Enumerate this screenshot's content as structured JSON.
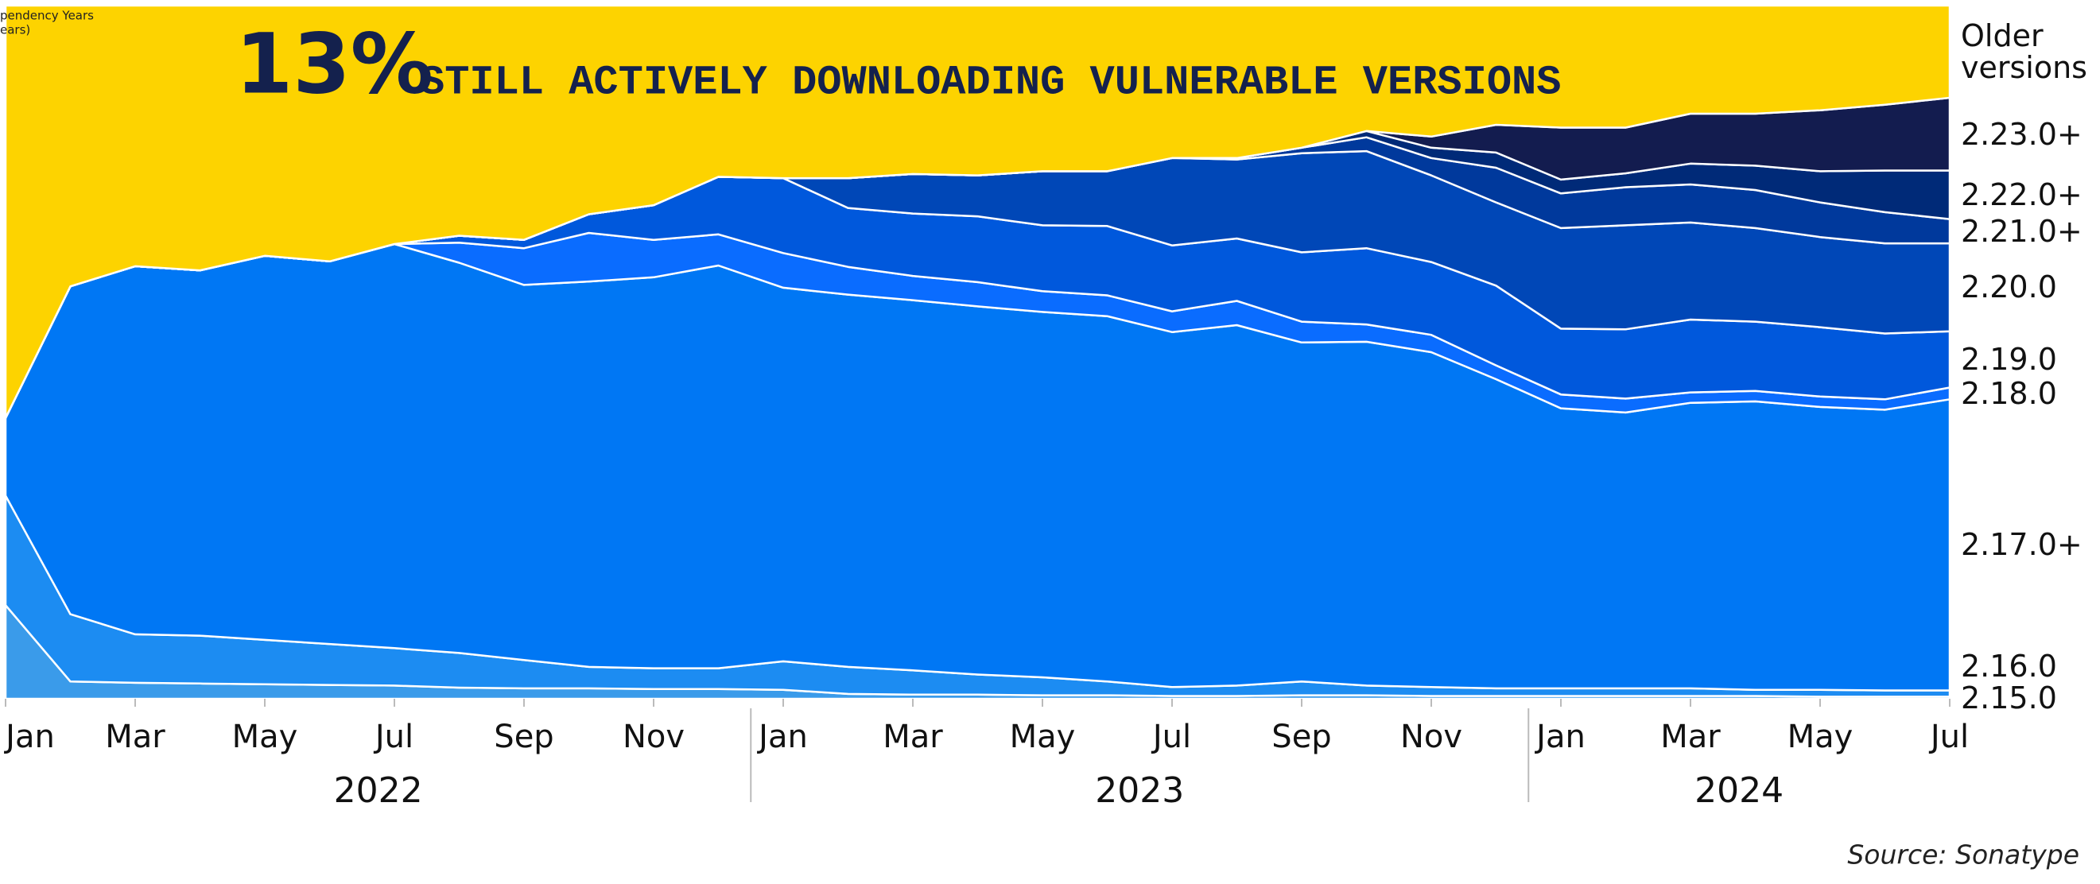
{
  "chart_data": {
    "type": "stacked_area",
    "title": "13%",
    "subtitle": "STILL ACTIVELY DOWNLOADING VULNERABLE VERSIONS",
    "axis_note": [
      "pendency Years",
      "ears)"
    ],
    "source": "Source: Sonatype",
    "x": [
      "2022-01",
      "2022-02",
      "2022-03",
      "2022-04",
      "2022-05",
      "2022-06",
      "2022-07",
      "2022-08",
      "2022-09",
      "2022-10",
      "2022-11",
      "2022-12",
      "2023-01",
      "2023-02",
      "2023-03",
      "2023-04",
      "2023-05",
      "2023-06",
      "2023-07",
      "2023-08",
      "2023-09",
      "2023-10",
      "2023-11",
      "2023-12",
      "2024-01",
      "2024-02",
      "2024-03",
      "2024-04",
      "2024-05",
      "2024-06",
      "2024-07"
    ],
    "xticks": [
      {
        "value": "2022-01",
        "label": "Jan"
      },
      {
        "value": "2022-03",
        "label": "Mar"
      },
      {
        "value": "2022-05",
        "label": "May"
      },
      {
        "value": "2022-07",
        "label": "Jul"
      },
      {
        "value": "2022-09",
        "label": "Sep"
      },
      {
        "value": "2022-11",
        "label": "Nov"
      },
      {
        "value": "2023-01",
        "label": "Jan"
      },
      {
        "value": "2023-03",
        "label": "Mar"
      },
      {
        "value": "2023-05",
        "label": "May"
      },
      {
        "value": "2023-07",
        "label": "Jul"
      },
      {
        "value": "2023-09",
        "label": "Sep"
      },
      {
        "value": "2023-11",
        "label": "Nov"
      },
      {
        "value": "2024-01",
        "label": "Jan"
      },
      {
        "value": "2024-03",
        "label": "Mar"
      },
      {
        "value": "2024-05",
        "label": "May"
      },
      {
        "value": "2024-07",
        "label": "Jul"
      }
    ],
    "years": [
      "2022",
      "2023",
      "2024"
    ],
    "ylim": [
      0,
      100
    ],
    "series": [
      {
        "name": "2.15.0",
        "color": "#3a9bea",
        "values": [
          13.5,
          2.5,
          2.3,
          2.2,
          2.1,
          2.0,
          1.9,
          1.6,
          1.5,
          1.5,
          1.4,
          1.4,
          1.3,
          0.7,
          0.6,
          0.6,
          0.5,
          0.5,
          0.4,
          0.4,
          0.5,
          0.5,
          0.4,
          0.4,
          0.4,
          0.4,
          0.4,
          0.4,
          0.3,
          0.3,
          0.3
        ]
      },
      {
        "name": "2.16.0",
        "color": "#1c8cf2",
        "values": [
          15.8,
          9.7,
          7.0,
          6.9,
          6.4,
          5.9,
          5.4,
          5.0,
          4.1,
          3.1,
          3.0,
          3.0,
          4.1,
          3.9,
          3.5,
          2.9,
          2.6,
          2.0,
          1.3,
          1.5,
          2.0,
          1.4,
          1.3,
          1.1,
          1.1,
          1.1,
          1.1,
          0.9,
          1.0,
          0.9,
          0.9
        ]
      },
      {
        "name": "2.17.0+",
        "color": "#0077f4",
        "values": [
          11.2,
          47.3,
          53.1,
          52.7,
          55.4,
          55.2,
          58.3,
          56.3,
          54.1,
          55.6,
          56.4,
          58.1,
          53.9,
          53.7,
          53.4,
          53.1,
          52.7,
          52.7,
          51.2,
          52.0,
          48.9,
          49.6,
          48.3,
          44.6,
          40.4,
          39.8,
          41.2,
          41.6,
          40.8,
          40.5,
          42.0
        ]
      },
      {
        "name": "2.18.0",
        "color": "#0a6cff",
        "values": [
          0,
          0,
          0,
          0,
          0,
          0,
          0,
          2.9,
          5.3,
          7.0,
          5.4,
          4.5,
          5.0,
          4.0,
          3.5,
          3.5,
          3.0,
          3.0,
          3.0,
          3.5,
          3.0,
          2.5,
          2.5,
          2.0,
          2.0,
          2.0,
          1.5,
          1.5,
          1.5,
          1.5,
          1.7
        ]
      },
      {
        "name": "2.19.0",
        "color": "#0058dc",
        "values": [
          0,
          0,
          0,
          0,
          0,
          0,
          0,
          1.0,
          1.2,
          2.7,
          5.0,
          8.3,
          10.8,
          8.5,
          9.0,
          9.5,
          9.5,
          10.0,
          9.5,
          9.0,
          10.0,
          11.0,
          10.5,
          11.5,
          9.5,
          10.0,
          10.5,
          10.0,
          10.0,
          9.5,
          8.1
        ]
      },
      {
        "name": "2.20.0",
        "color": "#0047b7",
        "values": [
          0,
          0,
          0,
          0,
          0,
          0,
          0,
          0,
          0,
          0,
          0,
          0,
          0,
          4.3,
          5.7,
          5.9,
          7.8,
          7.9,
          12.6,
          11.4,
          14.3,
          14.0,
          12.5,
          12.0,
          14.5,
          15.0,
          14.0,
          13.5,
          13.0,
          13.0,
          12.7
        ]
      },
      {
        "name": "2.21.0+",
        "color": "#00399c",
        "values": [
          0,
          0,
          0,
          0,
          0,
          0,
          0,
          0,
          0,
          0,
          0,
          0,
          0,
          0,
          0,
          0,
          0,
          0,
          0,
          0.2,
          0.8,
          2.0,
          2.5,
          5.0,
          5.0,
          5.5,
          5.5,
          5.5,
          5.0,
          4.5,
          3.5
        ]
      },
      {
        "name": "2.22.0+",
        "color": "#002a78",
        "values": [
          0,
          0,
          0,
          0,
          0,
          0,
          0,
          0,
          0,
          0,
          0,
          0,
          0,
          0,
          0,
          0,
          0,
          0,
          0,
          0,
          0,
          0.9,
          1.5,
          2.2,
          2.0,
          2.0,
          3.0,
          3.5,
          4.5,
          6.0,
          7.0
        ]
      },
      {
        "name": "2.23.0+",
        "color": "#131c4f",
        "values": [
          0,
          0,
          0,
          0,
          0,
          0,
          0,
          0,
          0,
          0,
          0,
          0,
          0,
          0,
          0,
          0,
          0,
          0,
          0,
          0,
          0,
          0,
          1.6,
          4.0,
          7.5,
          6.6,
          7.2,
          7.5,
          8.8,
          9.5,
          10.5
        ]
      },
      {
        "name": "Older versions",
        "color": "#fdd300",
        "values": [
          59.5,
          40.5,
          37.6,
          38.2,
          36.1,
          36.9,
          34.4,
          33.2,
          33.8,
          30.1,
          28.8,
          24.7,
          24.9,
          24.9,
          24.3,
          24.5,
          23.9,
          23.9,
          22.0,
          22.0,
          20.5,
          18.1,
          18.9,
          17.2,
          17.6,
          17.6,
          15.6,
          15.6,
          15.1,
          14.3,
          13.3
        ]
      }
    ]
  }
}
